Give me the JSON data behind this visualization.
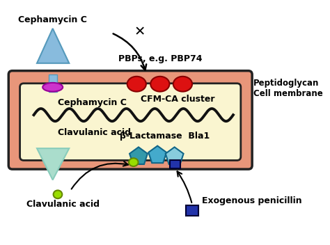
{
  "bg_color": "#ffffff",
  "membrane_color": "#e8967a",
  "cell_interior_color": "#faf5d0",
  "border_color": "#222222",
  "red_pbp_color": "#dd1111",
  "blue_arrow_up_color": "#88bbdd",
  "blue_arrow_down_color": "#aaddcc",
  "purple_ellipse_color": "#cc33cc",
  "wavy_line_color": "#111111",
  "teal_pentagon1_color": "#3399aa",
  "teal_pentagon2_color": "#44aacc",
  "teal_pentagon3_color": "#88ccdd",
  "yellow_circle_color": "#99dd00",
  "navy_square_color": "#2233aa",
  "label_cephamycin_top": "Cephamycin C",
  "label_pbp": "PBPs, e.g. PBP74",
  "label_peptidoglycan": "Peptidoglycan",
  "label_cell_membrane": "Cell membrane",
  "label_cephamycin_inner": "Cephamycin C",
  "label_cfm_ca": "CFM-CA cluster",
  "label_clavulanic_inner": "Clavulanic acid",
  "label_blactamase": "β-Lactamase  Bla1",
  "label_clavulanic_bottom": "Clavulanic acid",
  "label_exogenous": "Exogenous penicillin",
  "fig_w": 4.74,
  "fig_h": 3.52,
  "dpi": 100,
  "xlim": [
    0,
    474
  ],
  "ylim": [
    0,
    352
  ]
}
